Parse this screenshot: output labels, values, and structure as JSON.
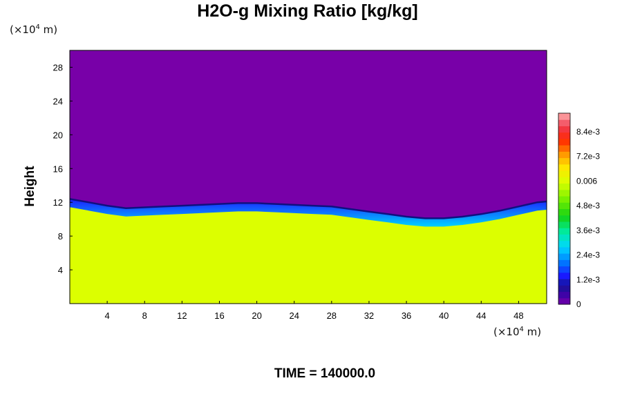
{
  "chart_data": {
    "type": "heatmap",
    "title": "H2O-g Mixing Ratio [kg/kg]",
    "ylabel": "Height",
    "x_unit": {
      "prefix": "(×10",
      "exp": "4",
      "suffix": " m)"
    },
    "y_unit": {
      "prefix": "(×10",
      "exp": "4",
      "suffix": " m)"
    },
    "xlim": [
      0,
      51
    ],
    "ylim": [
      0,
      30
    ],
    "x_ticks": [
      4,
      8,
      12,
      16,
      20,
      24,
      28,
      32,
      36,
      40,
      44,
      48
    ],
    "y_ticks": [
      4,
      8,
      12,
      16,
      20,
      24,
      28
    ],
    "colorbar": {
      "range": [
        0,
        0.0093
      ],
      "tick_values": [
        0,
        0.0012,
        0.0024,
        0.0036,
        0.0048,
        0.006,
        0.0072,
        0.0084
      ],
      "tick_labels": [
        "0",
        "1.2e-3",
        "2.4e-3",
        "3.6e-3",
        "4.8e-3",
        "0.006",
        "7.2e-3",
        "8.4e-3"
      ]
    },
    "field": {
      "upper_value": 0,
      "lower_value": 0.0062,
      "upper_color": "#7800a8",
      "lower_color": "#dcff00",
      "boundary": {
        "x": [
          0,
          2,
          4,
          6,
          8,
          10,
          12,
          14,
          16,
          18,
          20,
          22,
          24,
          26,
          28,
          30,
          32,
          34,
          36,
          38,
          40,
          42,
          44,
          46,
          48,
          50,
          51
        ],
        "height": [
          12.4,
          12.0,
          11.6,
          11.3,
          11.4,
          11.5,
          11.6,
          11.7,
          11.8,
          11.9,
          11.9,
          11.8,
          11.7,
          11.6,
          11.5,
          11.2,
          10.9,
          10.6,
          10.3,
          10.1,
          10.1,
          10.3,
          10.6,
          11.0,
          11.5,
          12.0,
          12.1
        ]
      }
    },
    "footer": "TIME = 140000.0"
  }
}
